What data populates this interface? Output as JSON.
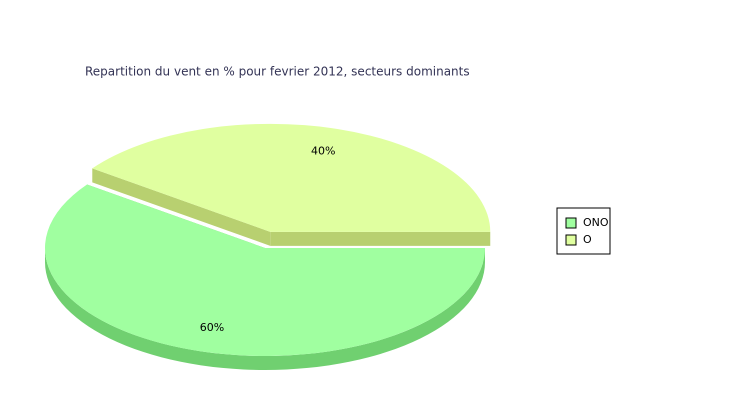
{
  "chart_data": {
    "type": "pie",
    "title": "Repartition du vent en % pour fevrier 2012, secteurs dominants",
    "categories": [
      "ONO",
      "O"
    ],
    "values": [
      60,
      40
    ],
    "value_labels": [
      "60%",
      "40%"
    ],
    "colors": [
      "#a0ffa0",
      "#e0ffa0"
    ],
    "side_colors": [
      "#70d070",
      "#b8d070"
    ]
  }
}
